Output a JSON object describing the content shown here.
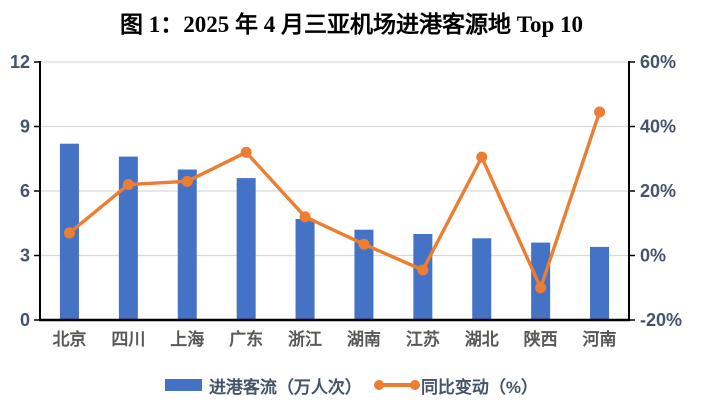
{
  "title": "图 1：2025 年 4 月三亚机场进港客源地 Top 10",
  "chart_data": {
    "type": "bar+line combo",
    "title": "图 1：2025 年 4 月三亚机场进港客源地 Top 10",
    "categories": [
      "北京",
      "四川",
      "上海",
      "广东",
      "浙江",
      "湖南",
      "江苏",
      "湖北",
      "陕西",
      "河南"
    ],
    "series": [
      {
        "name": "进港客流（万人次）",
        "type": "bar",
        "axis": "left",
        "color": "#4472C4",
        "values": [
          8.2,
          7.6,
          7.0,
          6.6,
          4.7,
          4.2,
          4.0,
          3.8,
          3.6,
          3.4
        ]
      },
      {
        "name": "同比变动（%）",
        "type": "line",
        "axis": "right",
        "color": "#ED7D31",
        "values": [
          7,
          22,
          23,
          32,
          12,
          3.5,
          -4.5,
          30.5,
          -10,
          44.5
        ]
      }
    ],
    "left_axis": {
      "min": 0,
      "max": 12,
      "ticks": [
        {
          "value": 0,
          "label": "0"
        },
        {
          "value": 3,
          "label": "3"
        },
        {
          "value": 6,
          "label": "6"
        },
        {
          "value": 9,
          "label": "9"
        },
        {
          "value": 12,
          "label": "12"
        }
      ]
    },
    "right_axis": {
      "min": -20,
      "max": 60,
      "ticks": [
        {
          "value": -20,
          "label": "-20%"
        },
        {
          "value": 0,
          "label": "0%"
        },
        {
          "value": 20,
          "label": "20%"
        },
        {
          "value": 40,
          "label": "40%"
        },
        {
          "value": 60,
          "label": "60%"
        }
      ]
    },
    "grid": true,
    "legend_position": "bottom"
  },
  "styles": {
    "background": "#FFFFFF",
    "bar_color": "#4472C4",
    "line_color": "#ED7D31",
    "gridline_color": "#D9D9D9",
    "axis_color": "#000000",
    "value_label_color": "#44546A",
    "category_label_color": "#595959"
  }
}
